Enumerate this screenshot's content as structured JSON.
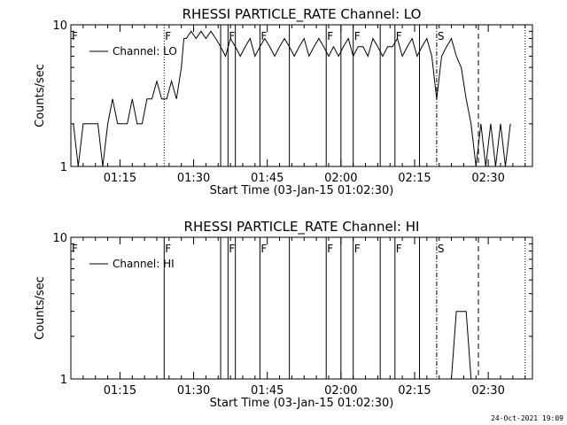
{
  "footer_stamp": "24-Oct-2021 19:09",
  "chart_data": [
    {
      "type": "line",
      "title": "RHESSI PARTICLE_RATE Channel: LO",
      "xlabel": "Start Time (03-Jan-15 01:02:30)",
      "ylabel": "Counts/sec",
      "yscale": "log",
      "ylim": [
        1,
        10
      ],
      "xlim_minutes": [
        2.5,
        96.5
      ],
      "x_ticks": [
        "01:15",
        "01:30",
        "01:45",
        "02:00",
        "02:15",
        "02:30"
      ],
      "y_ticks": [
        "1",
        "10"
      ],
      "legend": {
        "position": "top-left",
        "label": "Channel: LO"
      },
      "series": [
        {
          "name": "Channel: LO",
          "x": [
            3,
            4,
            5,
            6,
            7,
            8,
            9,
            10,
            11,
            12,
            13,
            14,
            15,
            16,
            17,
            18,
            19,
            20,
            21,
            22,
            23,
            24,
            25,
            25.5,
            26,
            27,
            28,
            29,
            30,
            31,
            32,
            33,
            34,
            35,
            36,
            37,
            38,
            39,
            40,
            41,
            42,
            43,
            44,
            45,
            46,
            47,
            48,
            49,
            50,
            51,
            52,
            53,
            54,
            55,
            56,
            57,
            58,
            59,
            60,
            61,
            62,
            63,
            64,
            65,
            66,
            67,
            68,
            69,
            70,
            71,
            72,
            73,
            74,
            75,
            76,
            77,
            78,
            79,
            80,
            81,
            82,
            83,
            84,
            85,
            86,
            87,
            88,
            89,
            90,
            91,
            92
          ],
          "values": [
            2,
            1,
            2,
            2,
            2,
            2,
            1,
            2,
            3,
            2,
            2,
            2,
            3,
            2,
            2,
            3,
            3,
            4,
            3,
            3,
            4,
            3,
            5,
            8,
            8,
            9,
            8,
            9,
            8,
            9,
            8,
            7,
            6,
            8,
            7,
            6,
            7,
            8,
            6,
            7,
            8,
            7,
            6,
            7,
            8,
            7,
            6,
            7,
            8,
            6,
            7,
            8,
            7,
            6,
            7,
            6,
            7,
            8,
            6,
            7,
            7,
            6,
            8,
            7,
            6,
            7,
            7,
            8,
            6,
            7,
            8,
            6,
            7,
            8,
            6,
            3,
            6,
            7,
            8,
            6,
            5,
            3,
            2,
            1,
            2,
            1,
            2,
            1,
            2,
            1,
            2
          ]
        }
      ],
      "vlines": [
        {
          "minute": 21.5,
          "style": "dotted",
          "marker": "F"
        },
        {
          "minute": 33,
          "style": "solid",
          "marker": ""
        },
        {
          "minute": 34.5,
          "style": "solid",
          "marker": "F"
        },
        {
          "minute": 36,
          "style": "solid",
          "marker": ""
        },
        {
          "minute": 41,
          "style": "solid",
          "marker": "F"
        },
        {
          "minute": 47,
          "style": "solid",
          "marker": ""
        },
        {
          "minute": 54.5,
          "style": "solid",
          "marker": "F"
        },
        {
          "minute": 57.5,
          "style": "solid",
          "marker": ""
        },
        {
          "minute": 60,
          "style": "solid",
          "marker": "F"
        },
        {
          "minute": 65.5,
          "style": "solid",
          "marker": ""
        },
        {
          "minute": 68.5,
          "style": "solid",
          "marker": "F"
        },
        {
          "minute": 73.5,
          "style": "solid",
          "marker": ""
        },
        {
          "minute": 77,
          "style": "dashdot",
          "marker": "S"
        },
        {
          "minute": 85.5,
          "style": "dashed",
          "marker": ""
        },
        {
          "minute": 95,
          "style": "dotted",
          "marker": ""
        }
      ],
      "left_marker": "F"
    },
    {
      "type": "line",
      "title": "RHESSI PARTICLE_RATE Channel: HI",
      "xlabel": "Start Time (03-Jan-15 01:02:30)",
      "ylabel": "Counts/sec",
      "yscale": "log",
      "ylim": [
        1,
        10
      ],
      "xlim_minutes": [
        2.5,
        96.5
      ],
      "x_ticks": [
        "01:15",
        "01:30",
        "01:45",
        "02:00",
        "02:15",
        "02:30"
      ],
      "y_ticks": [
        "1",
        "10"
      ],
      "legend": {
        "position": "top-left",
        "label": "Channel: HI"
      },
      "series": [
        {
          "name": "Channel: HI",
          "x": [
            80,
            81,
            82,
            83,
            84
          ],
          "values": [
            1,
            3,
            3,
            3,
            1
          ]
        }
      ],
      "vlines": [
        {
          "minute": 21.5,
          "style": "solid",
          "marker": "F"
        },
        {
          "minute": 33,
          "style": "solid",
          "marker": ""
        },
        {
          "minute": 34.5,
          "style": "solid",
          "marker": "F"
        },
        {
          "minute": 36,
          "style": "solid",
          "marker": ""
        },
        {
          "minute": 41,
          "style": "solid",
          "marker": "F"
        },
        {
          "minute": 47,
          "style": "solid",
          "marker": ""
        },
        {
          "minute": 54.5,
          "style": "solid",
          "marker": "F"
        },
        {
          "minute": 57.5,
          "style": "solid",
          "marker": ""
        },
        {
          "minute": 60,
          "style": "solid",
          "marker": "F"
        },
        {
          "minute": 65.5,
          "style": "solid",
          "marker": ""
        },
        {
          "minute": 68.5,
          "style": "solid",
          "marker": "F"
        },
        {
          "minute": 73.5,
          "style": "solid",
          "marker": ""
        },
        {
          "minute": 77,
          "style": "dashdot",
          "marker": "S"
        },
        {
          "minute": 85.5,
          "style": "dashed",
          "marker": ""
        },
        {
          "minute": 95,
          "style": "dotted",
          "marker": ""
        }
      ],
      "left_marker": "F"
    }
  ]
}
